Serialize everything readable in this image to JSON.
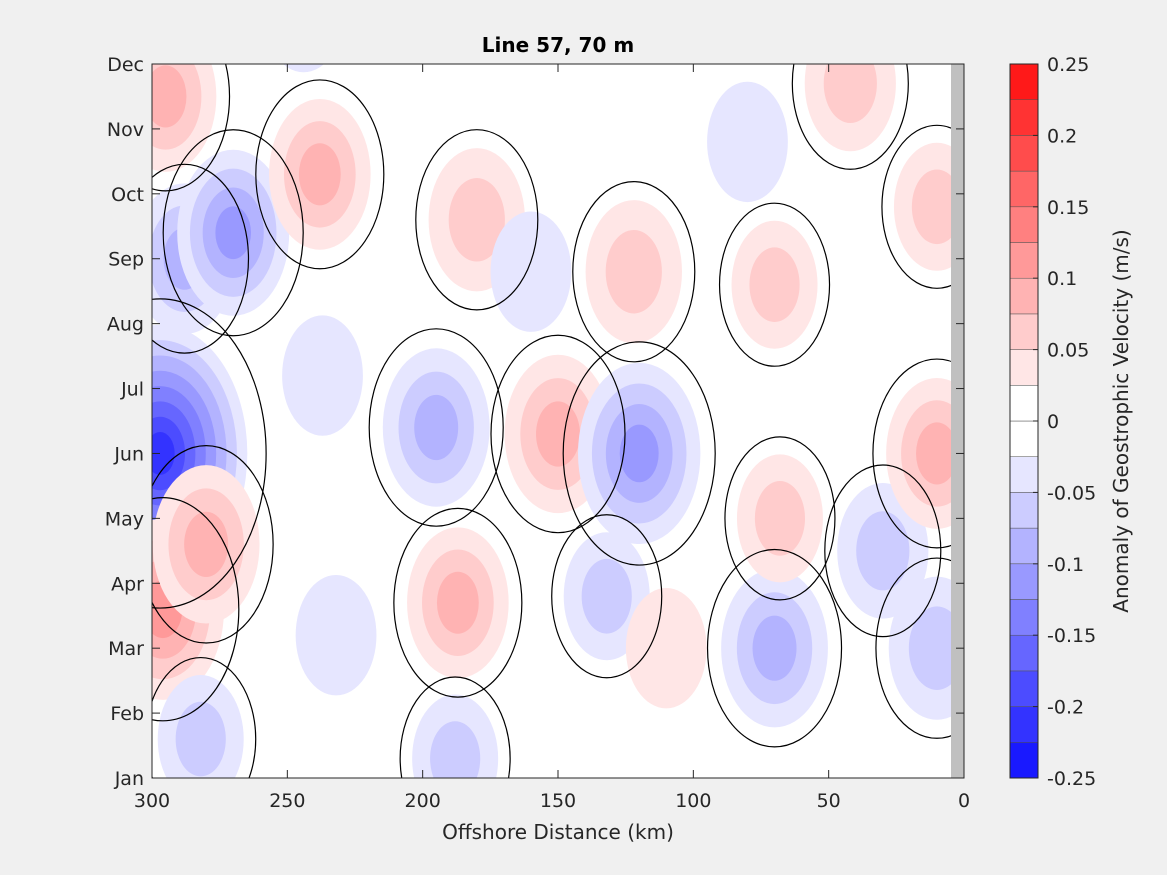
{
  "chart_data": {
    "type": "heatmap",
    "title": "Line 57, 70 m",
    "xlabel": "Offshore Distance (km)",
    "ylabel": "",
    "xlim": [
      300,
      0
    ],
    "x_reversed": true,
    "ylim": [
      "Jan",
      "Dec"
    ],
    "x_ticks": [
      "300",
      "250",
      "200",
      "150",
      "100",
      "50",
      "0"
    ],
    "y_ticks": [
      "Jan",
      "Feb",
      "Mar",
      "Apr",
      "May",
      "Jun",
      "Jul",
      "Aug",
      "Sep",
      "Oct",
      "Nov",
      "Dec"
    ],
    "colorbar": {
      "label": "Anomaly of Geostrophic Velocity (m/s)",
      "range": [
        -0.25,
        0.25
      ],
      "step": 0.025,
      "ticks": [
        "0.25",
        "0.2",
        "0.15",
        "0.1",
        "0.05",
        "0",
        "-0.05",
        "-0.1",
        "-0.15",
        "-0.2",
        "-0.25"
      ],
      "neg_color": "#0000ff",
      "pos_color": "#ff0000",
      "zero_color": "#ffffff"
    },
    "contour_line": {
      "level": 0,
      "color": "#000000"
    },
    "land_color": "#c0c0c0",
    "features": [
      {
        "km": 297,
        "month": 6.0,
        "value": -0.22
      },
      {
        "km": 288,
        "month": 9.0,
        "value": -0.08
      },
      {
        "km": 270,
        "month": 9.4,
        "value": -0.1
      },
      {
        "km": 295,
        "month": 11.5,
        "value": 0.08
      },
      {
        "km": 296,
        "month": 3.6,
        "value": 0.12
      },
      {
        "km": 280,
        "month": 4.6,
        "value": 0.09
      },
      {
        "km": 282,
        "month": 1.6,
        "value": -0.05
      },
      {
        "km": 238,
        "month": 10.3,
        "value": 0.08
      },
      {
        "km": 244,
        "month": 12.8,
        "value": -0.04
      },
      {
        "km": 237,
        "month": 7.2,
        "value": -0.04
      },
      {
        "km": 232,
        "month": 3.2,
        "value": -0.04
      },
      {
        "km": 195,
        "month": 6.4,
        "value": -0.09
      },
      {
        "km": 187,
        "month": 3.7,
        "value": 0.08
      },
      {
        "km": 180,
        "month": 9.6,
        "value": 0.07
      },
      {
        "km": 188,
        "month": 1.3,
        "value": -0.05
      },
      {
        "km": 150,
        "month": 6.3,
        "value": 0.09
      },
      {
        "km": 160,
        "month": 8.8,
        "value": -0.04
      },
      {
        "km": 120,
        "month": 6.0,
        "value": -0.12
      },
      {
        "km": 122,
        "month": 8.8,
        "value": 0.07
      },
      {
        "km": 132,
        "month": 3.8,
        "value": -0.05
      },
      {
        "km": 110,
        "month": 3.0,
        "value": 0.04
      },
      {
        "km": 70,
        "month": 3.0,
        "value": -0.09
      },
      {
        "km": 70,
        "month": 8.6,
        "value": 0.05
      },
      {
        "km": 68,
        "month": 5.0,
        "value": 0.05
      },
      {
        "km": 80,
        "month": 10.8,
        "value": -0.04
      },
      {
        "km": 42,
        "month": 11.7,
        "value": 0.06
      },
      {
        "km": 30,
        "month": 4.5,
        "value": -0.06
      },
      {
        "km": 10,
        "month": 3.0,
        "value": -0.07
      },
      {
        "km": 10,
        "month": 6.0,
        "value": 0.08
      },
      {
        "km": 10,
        "month": 9.8,
        "value": 0.05
      }
    ]
  }
}
